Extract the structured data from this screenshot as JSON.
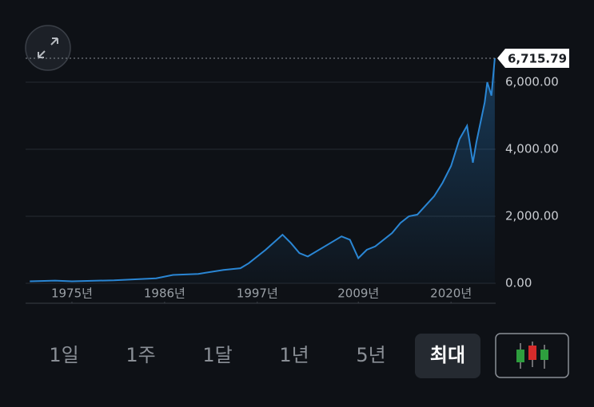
{
  "chart_data": {
    "type": "area",
    "x": [
      1970,
      1973,
      1975,
      1980,
      1985,
      1987,
      1990,
      1993,
      1995,
      1996,
      1998,
      2000,
      2001,
      2002,
      2003,
      2005,
      2007,
      2008,
      2009,
      2010,
      2011,
      2013,
      2014,
      2015,
      2016,
      2018,
      2019,
      2020,
      2021,
      2021.9,
      2022.6,
      2023,
      2024,
      2024.3,
      2024.8,
      2025.2
    ],
    "values": [
      60,
      80,
      60,
      90,
      150,
      250,
      280,
      400,
      450,
      600,
      1000,
      1450,
      1200,
      900,
      800,
      1100,
      1400,
      1300,
      750,
      1000,
      1100,
      1500,
      1800,
      2000,
      2050,
      2600,
      3000,
      3500,
      4300,
      4700,
      3600,
      4200,
      5400,
      6000,
      5600,
      6715.79
    ],
    "color": "#2a86d4",
    "xlim": [
      1969.5,
      2025.3
    ],
    "xticks": [
      {
        "value": 1975,
        "label": "1975년"
      },
      {
        "value": 1986,
        "label": "1986년"
      },
      {
        "value": 1997,
        "label": "1997년"
      },
      {
        "value": 2009,
        "label": "2009년"
      },
      {
        "value": 2020,
        "label": "2020년"
      }
    ],
    "ylim": [
      -595,
      7024
    ],
    "yticks": [
      {
        "value": 0,
        "label": "0.00"
      },
      {
        "value": 2000,
        "label": "2,000.00"
      },
      {
        "value": 4000,
        "label": "4,000.00"
      },
      {
        "value": 6000,
        "label": "6,000.00"
      }
    ],
    "grid": true,
    "last_price": {
      "value": 6715.79,
      "label": "6,715.79"
    }
  },
  "ui": {
    "ranges": [
      "1일",
      "1주",
      "1달",
      "1년",
      "5년",
      "최대"
    ],
    "selected": 5
  }
}
